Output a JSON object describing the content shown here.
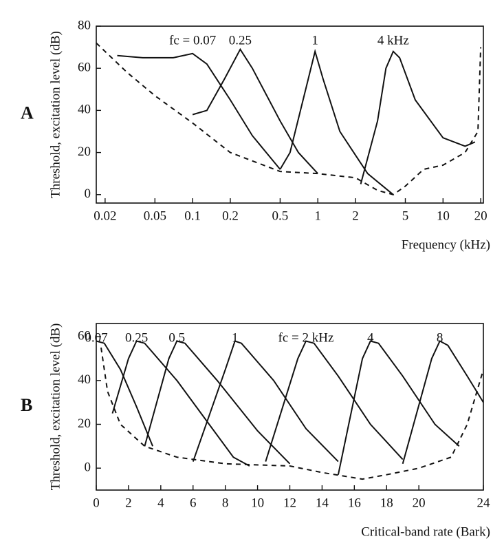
{
  "chart_data": [
    {
      "type": "line",
      "label": "A",
      "y_label": "Threshold, excitation level (dB)",
      "x_label": "Frequency (kHz)",
      "xscale": "log",
      "xlim": [
        0.017,
        21
      ],
      "ylim": [
        -4,
        80
      ],
      "xticks": [
        0.02,
        0.05,
        0.1,
        0.2,
        0.5,
        1,
        2,
        5,
        10,
        20
      ],
      "yticks": [
        0,
        20,
        40,
        60,
        80
      ],
      "series": [
        {
          "name": "fc = 0.07",
          "color": "#111111",
          "x": [
            0.025,
            0.04,
            0.07,
            0.1,
            0.13,
            0.2,
            0.3,
            0.5
          ],
          "values": [
            66,
            65,
            65,
            67,
            62,
            45,
            28,
            12
          ]
        },
        {
          "name": "0.25",
          "color": "#111111",
          "x": [
            0.1,
            0.13,
            0.18,
            0.24,
            0.3,
            0.5,
            0.7,
            1
          ],
          "values": [
            38,
            40,
            55,
            69,
            60,
            35,
            20,
            10
          ]
        },
        {
          "name": "1",
          "color": "#111111",
          "x": [
            0.5,
            0.6,
            0.8,
            0.95,
            1.1,
            1.5,
            2.5,
            4
          ],
          "values": [
            12,
            20,
            50,
            68,
            55,
            30,
            10,
            0
          ]
        },
        {
          "name": "4 kHz",
          "color": "#111111",
          "x": [
            2.2,
            3,
            3.5,
            4,
            4.5,
            6,
            10,
            15,
            18
          ],
          "values": [
            5,
            35,
            60,
            68,
            65,
            45,
            27,
            23,
            25
          ]
        },
        {
          "color": "#111111",
          "linestyle": "dashed",
          "x": [
            0.017,
            0.03,
            0.05,
            0.1,
            0.2,
            0.5,
            1,
            2,
            3,
            4,
            5,
            7,
            10,
            15,
            19,
            20
          ],
          "values": [
            72,
            58,
            47,
            34,
            20,
            11,
            10,
            8,
            2,
            0,
            4,
            12,
            14,
            20,
            30,
            70
          ]
        }
      ]
    },
    {
      "type": "line",
      "label": "B",
      "y_label": "Threshold, excitation level (dB)",
      "x_label": "Critical-band rate (Bark)",
      "xscale": "linear",
      "xlim": [
        0,
        24
      ],
      "ylim": [
        -10,
        66
      ],
      "xticks": [
        0,
        2,
        4,
        6,
        8,
        10,
        12,
        14,
        16,
        18,
        20,
        24
      ],
      "yticks": [
        0,
        20,
        40,
        60
      ],
      "series": [
        {
          "name": "0.07",
          "color": "#111111",
          "x": [
            0,
            0.5,
            1.5,
            2.5,
            3.5
          ],
          "values": [
            58,
            57,
            45,
            28,
            10
          ]
        },
        {
          "name": "0.25",
          "color": "#111111",
          "x": [
            1,
            2,
            2.5,
            3,
            5,
            7,
            8.5,
            9.5
          ],
          "values": [
            25,
            50,
            58,
            57,
            40,
            20,
            5,
            1
          ]
        },
        {
          "name": "0.5",
          "color": "#111111",
          "x": [
            3,
            4.5,
            5,
            5.5,
            7.5,
            10,
            12
          ],
          "values": [
            10,
            50,
            58,
            57,
            40,
            17,
            2
          ]
        },
        {
          "name": "1",
          "color": "#111111",
          "x": [
            6,
            8,
            8.6,
            9,
            11,
            13,
            15
          ],
          "values": [
            3,
            45,
            58,
            57,
            40,
            18,
            3
          ]
        },
        {
          "name": "fc = 2 kHz",
          "color": "#111111",
          "x": [
            10.5,
            12.5,
            13,
            13.5,
            15,
            17,
            19
          ],
          "values": [
            3,
            50,
            58,
            57,
            42,
            20,
            4
          ]
        },
        {
          "name": "4",
          "color": "#111111",
          "x": [
            15,
            16.5,
            17,
            17.5,
            19,
            21,
            22.5
          ],
          "values": [
            -3,
            50,
            58,
            57,
            42,
            20,
            10
          ]
        },
        {
          "name": "8",
          "color": "#111111",
          "x": [
            19,
            20.8,
            21.3,
            21.8,
            23,
            24
          ],
          "values": [
            2,
            50,
            58,
            56,
            42,
            30
          ]
        },
        {
          "color": "#111111",
          "linestyle": "dashed",
          "x": [
            0.3,
            0.7,
            1.5,
            3,
            5,
            8,
            12,
            14,
            16.5,
            18,
            20,
            22,
            23,
            24
          ],
          "values": [
            55,
            35,
            20,
            10,
            5,
            2,
            1,
            -2,
            -5,
            -3,
            0,
            5,
            20,
            45
          ]
        }
      ]
    }
  ]
}
